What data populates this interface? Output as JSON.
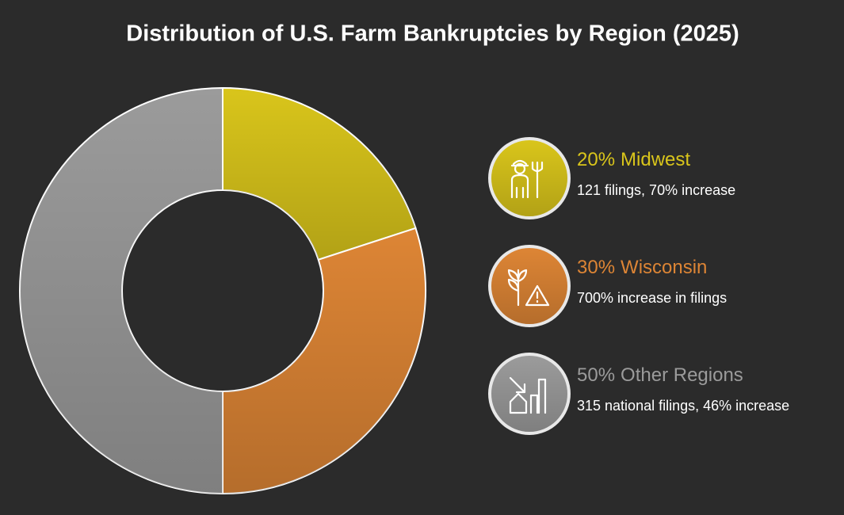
{
  "chart_data": {
    "type": "donut",
    "title": "Distribution of U.S. Farm Bankruptcies by Region (2025)",
    "categories": [
      "Midwest",
      "Wisconsin",
      "Other Regions"
    ],
    "values": [
      20,
      30,
      50
    ],
    "value_labels": [
      "20%",
      "30%",
      "50%"
    ],
    "colors": [
      "#d9c51b",
      "#dd8535",
      "#9b9b9b"
    ],
    "annotations": [
      "121 filings, 70% increase",
      "700% increase in filings",
      "315 national filings, 46% increase"
    ]
  }
}
